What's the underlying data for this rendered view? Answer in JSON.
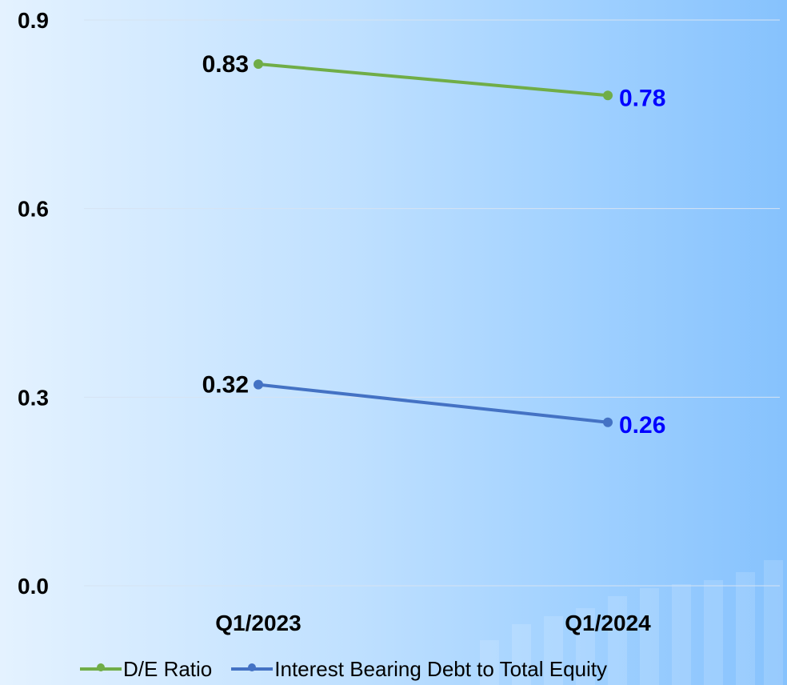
{
  "chart_data": {
    "type": "line",
    "categories": [
      "Q1/2023",
      "Q1/2024"
    ],
    "series": [
      {
        "name": "D/E Ratio",
        "values": [
          0.83,
          0.78
        ],
        "color": "#70ad47",
        "labels": [
          "0.83",
          "0.78"
        ],
        "label_colors": [
          "#000000",
          "#0000ff"
        ]
      },
      {
        "name": "Interest Bearing Debt to Total Equity",
        "values": [
          0.32,
          0.26
        ],
        "color": "#4472c4",
        "labels": [
          "0.32",
          "0.26"
        ],
        "label_colors": [
          "#000000",
          "#0000ff"
        ]
      }
    ],
    "yticks": [
      "0.0",
      "0.3",
      "0.6",
      "0.9"
    ],
    "ylim": [
      0,
      0.9
    ],
    "grid": true,
    "legend": "bottom"
  }
}
